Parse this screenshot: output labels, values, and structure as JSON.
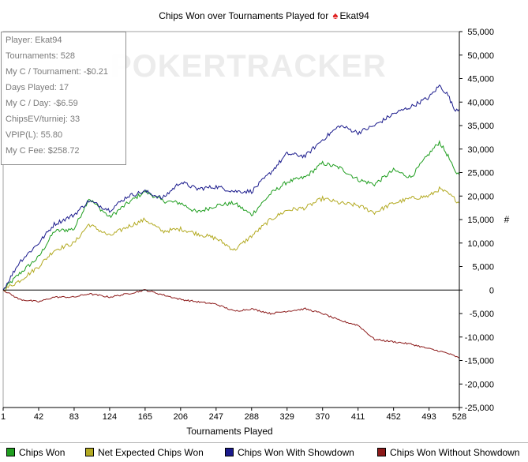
{
  "chart_data": {
    "type": "line",
    "title": "Chips Won over Tournaments Played for",
    "player_name": "Ekat94",
    "watermark": "POKERTRACKER",
    "xlabel": "Tournaments Played",
    "ylabel": "#",
    "xlim": [
      1,
      528
    ],
    "ylim": [
      -25000,
      55000
    ],
    "x_ticks": [
      1,
      42,
      83,
      124,
      165,
      206,
      247,
      288,
      329,
      370,
      411,
      452,
      493,
      528
    ],
    "y_ticks": [
      55000,
      50000,
      45000,
      40000,
      35000,
      30000,
      25000,
      20000,
      15000,
      10000,
      5000,
      0,
      -5000,
      -10000,
      -15000,
      -20000,
      -25000
    ],
    "y_tick_labels": [
      "55,000",
      "50,000",
      "45,000",
      "40,000",
      "35,000",
      "30,000",
      "25,000",
      "20,000",
      "15,000",
      "10,000",
      "5,000",
      "0",
      "-5,000",
      "-10,000",
      "-15,000",
      "-20,000",
      "-25,000"
    ],
    "stats": [
      "Player: Ekat94",
      "Tournaments: 528",
      "My C / Tournament: -$0.21",
      "Days Played: 17",
      "My C / Day: -$6.59",
      "ChipsEV/turniej: 33",
      "VPIP(L): 55.80",
      "My C Fee: $258.72"
    ],
    "series": [
      {
        "name": "Chips Won",
        "color": "#1f9e1f",
        "x": [
          1,
          20,
          42,
          60,
          83,
          100,
          124,
          145,
          165,
          185,
          206,
          225,
          247,
          268,
          288,
          310,
          329,
          350,
          370,
          390,
          411,
          430,
          452,
          472,
          493,
          505,
          515,
          522,
          528
        ],
        "y": [
          0,
          3500,
          7000,
          12500,
          13000,
          19500,
          15500,
          18500,
          21000,
          19000,
          18500,
          16500,
          18000,
          18500,
          16000,
          20500,
          23000,
          24000,
          27000,
          26000,
          23500,
          22500,
          25500,
          24000,
          29000,
          31500,
          28500,
          25500,
          24500
        ]
      },
      {
        "name": "Net Expected Chips Won",
        "color": "#b3aa22",
        "x": [
          1,
          20,
          42,
          60,
          83,
          100,
          124,
          145,
          165,
          185,
          206,
          225,
          247,
          268,
          288,
          310,
          329,
          350,
          370,
          390,
          411,
          430,
          452,
          472,
          493,
          505,
          515,
          522,
          528
        ],
        "y": [
          0,
          2000,
          5000,
          8500,
          10000,
          14000,
          11500,
          13500,
          15000,
          12500,
          13000,
          12000,
          11000,
          8500,
          11500,
          15000,
          17000,
          17500,
          19500,
          18500,
          18000,
          16500,
          18500,
          19500,
          20000,
          21500,
          20500,
          19500,
          18500
        ]
      },
      {
        "name": "Chips Won With Showdown",
        "color": "#1a1a8c",
        "x": [
          1,
          20,
          42,
          60,
          83,
          100,
          124,
          145,
          165,
          185,
          206,
          225,
          247,
          268,
          288,
          310,
          329,
          350,
          370,
          390,
          411,
          430,
          452,
          472,
          493,
          505,
          515,
          522,
          528
        ],
        "y": [
          0,
          6000,
          10000,
          14000,
          16000,
          19000,
          17000,
          20000,
          21000,
          19500,
          23000,
          21500,
          22000,
          21000,
          21000,
          25000,
          29000,
          28500,
          32000,
          35000,
          33500,
          35000,
          37500,
          39000,
          41000,
          43500,
          41500,
          38500,
          38500
        ]
      },
      {
        "name": "Chips Won Without Showdown",
        "color": "#8c1a1a",
        "x": [
          1,
          20,
          42,
          60,
          83,
          100,
          124,
          145,
          165,
          185,
          206,
          225,
          247,
          268,
          288,
          310,
          329,
          350,
          370,
          390,
          411,
          430,
          452,
          472,
          493,
          505,
          515,
          522,
          528
        ],
        "y": [
          0,
          -2000,
          -2500,
          -1500,
          -1500,
          -800,
          -1500,
          -800,
          0,
          -1000,
          -2000,
          -2500,
          -3000,
          -4500,
          -4000,
          -5000,
          -4500,
          -4000,
          -5000,
          -6500,
          -7500,
          -10500,
          -11000,
          -11500,
          -12500,
          -13000,
          -13500,
          -14000,
          -14500
        ]
      }
    ]
  }
}
